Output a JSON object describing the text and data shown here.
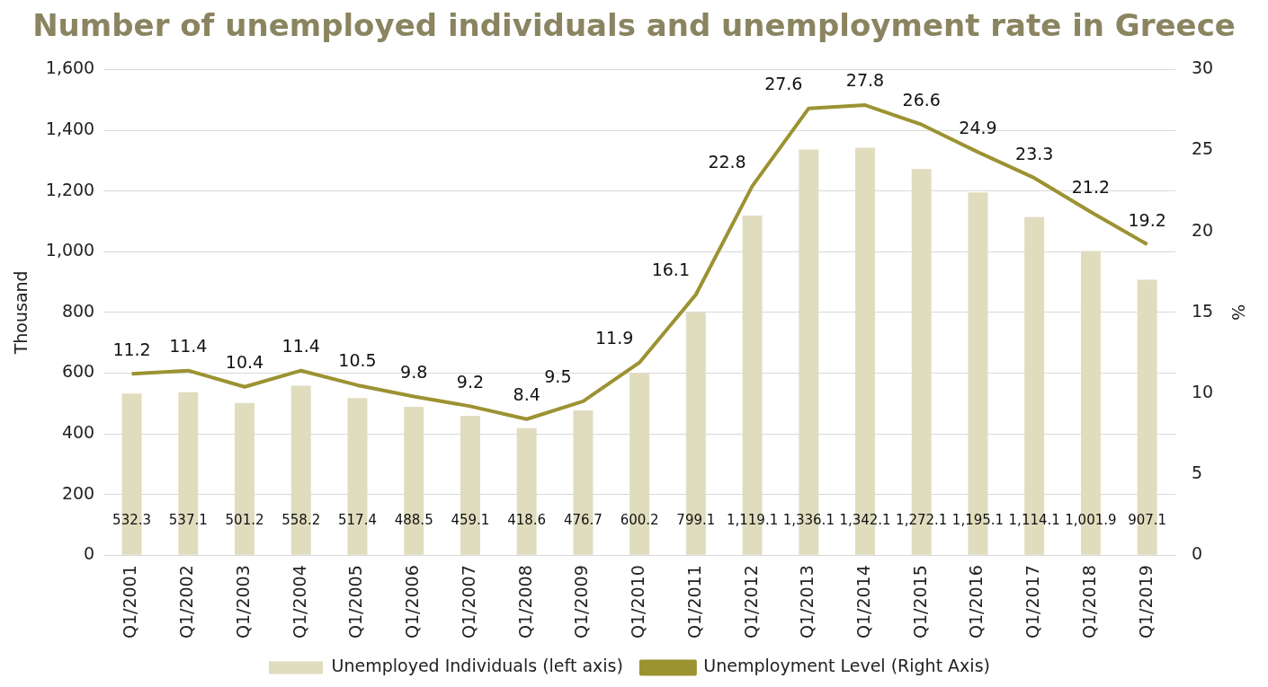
{
  "chart_data": {
    "type": "bar",
    "title": "Number of unemployed individuals and unemployment rate in Greece",
    "ylabel": "Thousand",
    "y2label": "%",
    "categories": [
      "Q1/2001",
      "Q1/2002",
      "Q1/2003",
      "Q1/2004",
      "Q1/2005",
      "Q1/2006",
      "Q1/2007",
      "Q1/2008",
      "Q1/2009",
      "Q1/2010",
      "Q1/2011",
      "Q1/2012",
      "Q1/2013",
      "Q1/2014",
      "Q1/2015",
      "Q1/2016",
      "Q1/2017",
      "Q1/2018",
      "Q1/2019"
    ],
    "series": [
      {
        "name": "Unemployed Individuals (left axis)",
        "color": "#e0dcbe",
        "values": [
          532.3,
          537.1,
          501.2,
          558.2,
          517.4,
          488.5,
          459.1,
          418.6,
          476.7,
          600.2,
          799.1,
          1119.1,
          1336.1,
          1342.1,
          1272.1,
          1195.1,
          1114.1,
          1001.9,
          907.1
        ],
        "value_labels": [
          "532.3",
          "537.1",
          "501.2",
          "558.2",
          "517.4",
          "488.5",
          "459.1",
          "418.6",
          "476.7",
          "600.2",
          "799.1",
          "1,119.1",
          "1,336.1",
          "1,342.1",
          "1,272.1",
          "1,195.1",
          "1,114.1",
          "1,001.9",
          "907.1"
        ]
      },
      {
        "name": "Unemployment Level (Right Axis)",
        "type": "line",
        "axis": "y2",
        "color": "#9c9232",
        "values": [
          11.2,
          11.4,
          10.4,
          11.4,
          10.5,
          9.8,
          9.2,
          8.4,
          9.5,
          11.9,
          16.1,
          22.8,
          27.6,
          27.8,
          26.6,
          24.9,
          23.3,
          21.2,
          19.2
        ]
      }
    ],
    "ylim": [
      0,
      1600
    ],
    "yticks": [
      {
        "value": 0,
        "label": "0"
      },
      {
        "value": 200,
        "label": "200"
      },
      {
        "value": 400,
        "label": "400"
      },
      {
        "value": 600,
        "label": "600"
      },
      {
        "value": 800,
        "label": "800"
      },
      {
        "value": 1000,
        "label": "1,000"
      },
      {
        "value": 1200,
        "label": "1,200"
      },
      {
        "value": 1400,
        "label": "1,400"
      },
      {
        "value": 1600,
        "label": "1,600"
      }
    ],
    "y2lim": [
      0,
      30
    ],
    "y2ticks": [
      0,
      5,
      10,
      15,
      20,
      25,
      30
    ],
    "grid": "y",
    "legend": "bottom",
    "marker": "none",
    "data_labels": true
  }
}
